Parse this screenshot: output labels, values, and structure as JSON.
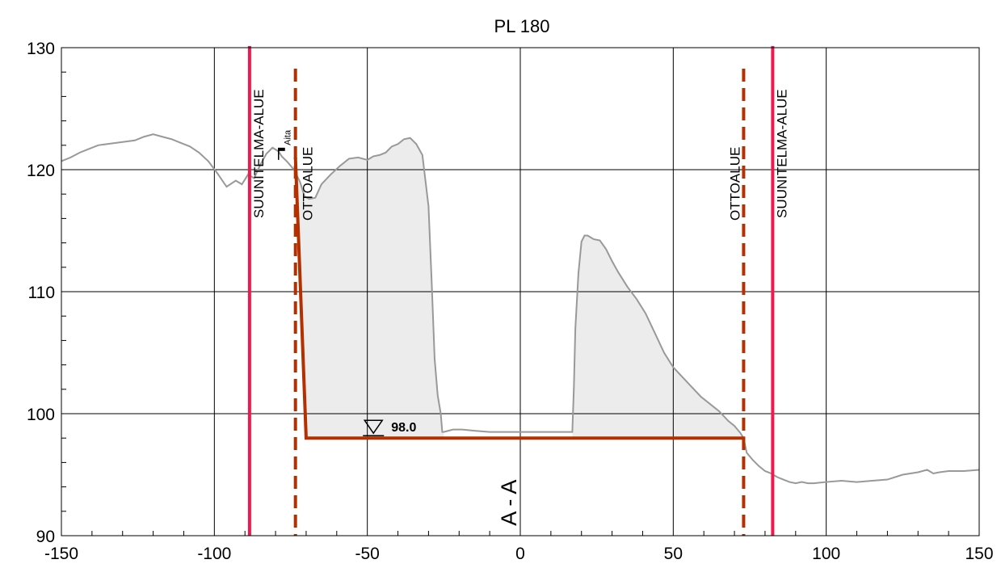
{
  "chart_data": {
    "type": "line",
    "title": "PL 180",
    "xlim": [
      -150,
      150
    ],
    "ylim": [
      90,
      130
    ],
    "x_ticks": [
      -150,
      -100,
      -50,
      0,
      50,
      100,
      150
    ],
    "y_ticks": [
      90,
      100,
      110,
      120,
      130
    ],
    "x_tick_labels": [
      "-150",
      "-100",
      "-50",
      "0",
      "50",
      "100",
      "150"
    ],
    "y_tick_labels": [
      "90",
      "100",
      "110",
      "120",
      "130"
    ],
    "grid": true,
    "colors": {
      "terrain": "#999999",
      "fill": "#ececec",
      "excavation": "#b33000",
      "plan_area": "#ee1a4e"
    },
    "terrain": {
      "x": [
        -150,
        -147,
        -144,
        -141,
        -138,
        -135,
        -132,
        -129,
        -126,
        -123,
        -120,
        -117,
        -114,
        -111,
        -108,
        -105,
        -102,
        -99,
        -96,
        -93,
        -91,
        -89,
        -87,
        -85,
        -83,
        -81,
        -79,
        -78,
        -76,
        -74,
        -72,
        -70.5,
        -69,
        -67,
        -65,
        -62,
        -59,
        -56,
        -53,
        -50,
        -48,
        -46,
        -44,
        -42,
        -40,
        -38,
        -36,
        -34,
        -32,
        -30,
        -29,
        -28,
        -27,
        -26,
        -25.5,
        -25,
        -22,
        -19,
        -15,
        -10,
        -5,
        0,
        5,
        10,
        17,
        17.5,
        18,
        19,
        20,
        21,
        22,
        24,
        26,
        28,
        30,
        32,
        35,
        38,
        41,
        44,
        47,
        50,
        53,
        56,
        59,
        62,
        65,
        68,
        70,
        72,
        73,
        74,
        76,
        78,
        80,
        82,
        84,
        86,
        88,
        90,
        92,
        94,
        96,
        100,
        105,
        110,
        115,
        120,
        125,
        130,
        133,
        135,
        137,
        140,
        145,
        150
      ],
      "y": [
        120.7,
        121.0,
        121.4,
        121.7,
        122.0,
        122.1,
        122.2,
        122.3,
        122.4,
        122.7,
        122.9,
        122.7,
        122.5,
        122.2,
        121.9,
        121.4,
        120.7,
        119.7,
        118.6,
        119.1,
        118.8,
        119.6,
        119.3,
        120.4,
        121.3,
        121.8,
        121.5,
        121.1,
        120.6,
        120.0,
        119.0,
        117.8,
        117.6,
        117.7,
        118.8,
        119.6,
        120.3,
        120.9,
        121.0,
        120.8,
        121.1,
        121.2,
        121.4,
        121.9,
        122.1,
        122.5,
        122.6,
        122.1,
        121.2,
        117.0,
        111.0,
        104.5,
        101.5,
        100.0,
        98.5,
        98.5,
        98.7,
        98.7,
        98.6,
        98.5,
        98.5,
        98.5,
        98.5,
        98.5,
        98.5,
        102.0,
        107.0,
        111.5,
        114.1,
        114.6,
        114.6,
        114.3,
        114.2,
        113.5,
        112.5,
        111.6,
        110.4,
        109.4,
        108.2,
        106.6,
        105.0,
        103.8,
        103.0,
        102.2,
        101.4,
        100.8,
        100.2,
        99.4,
        99.0,
        98.4,
        98.0,
        96.8,
        96.2,
        95.7,
        95.3,
        95.1,
        94.8,
        94.6,
        94.4,
        94.3,
        94.4,
        94.3,
        94.3,
        94.4,
        94.5,
        94.4,
        94.5,
        94.6,
        95.0,
        95.2,
        95.4,
        95.1,
        95.2,
        95.3,
        95.3,
        95.4
      ],
      "fill_ranges": [
        [
          -73.5,
          -25
        ],
        [
          17,
          73.5
        ]
      ]
    },
    "excavation": {
      "x": [
        -73.5,
        -70.0,
        73.5
      ],
      "y": [
        121.0,
        98.0,
        98.0
      ]
    },
    "plan_lines": [
      {
        "x": -88.5,
        "label": "SUUNITELMA-ALUE"
      },
      {
        "x": 82.5,
        "label": "SUUNITELMA-ALUE"
      }
    ],
    "extraction_lines": [
      {
        "x": -73.5,
        "label": "OTTOALUE"
      },
      {
        "x": 73.0,
        "label": "OTTOALUE"
      }
    ],
    "annotations": {
      "fence": {
        "x": -78.5,
        "y": 121.6,
        "label": "Aita"
      },
      "water_level": {
        "x": -48,
        "y": 98.0,
        "label": "98.0"
      },
      "section": {
        "x": 0,
        "y": 93,
        "label": "A - A"
      }
    }
  }
}
